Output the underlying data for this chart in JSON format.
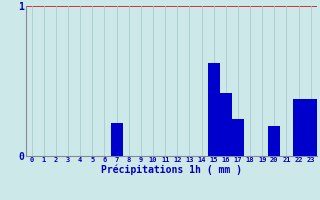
{
  "hours": [
    0,
    1,
    2,
    3,
    4,
    5,
    6,
    7,
    8,
    9,
    10,
    11,
    12,
    13,
    14,
    15,
    16,
    17,
    18,
    19,
    20,
    21,
    22,
    23
  ],
  "values": [
    0,
    0,
    0,
    0,
    0,
    0,
    0,
    0.22,
    0,
    0,
    0,
    0,
    0,
    0,
    0,
    0.62,
    0.42,
    0.25,
    0,
    0,
    0.2,
    0,
    0.38,
    0.38
  ],
  "bar_color": "#0000cc",
  "background_color": "#cce8e8",
  "grid_color_v": "#aacccc",
  "grid_color_h": "#cc3333",
  "axis_color": "#888899",
  "text_color": "#0000bb",
  "xlabel": "Précipitations 1h ( mm )",
  "ylim": [
    0,
    1.0
  ],
  "yticks": [
    0,
    1
  ],
  "xlim": [
    -0.5,
    23.5
  ],
  "xlabel_fontsize": 7,
  "xtick_fontsize": 5,
  "ytick_fontsize": 7
}
